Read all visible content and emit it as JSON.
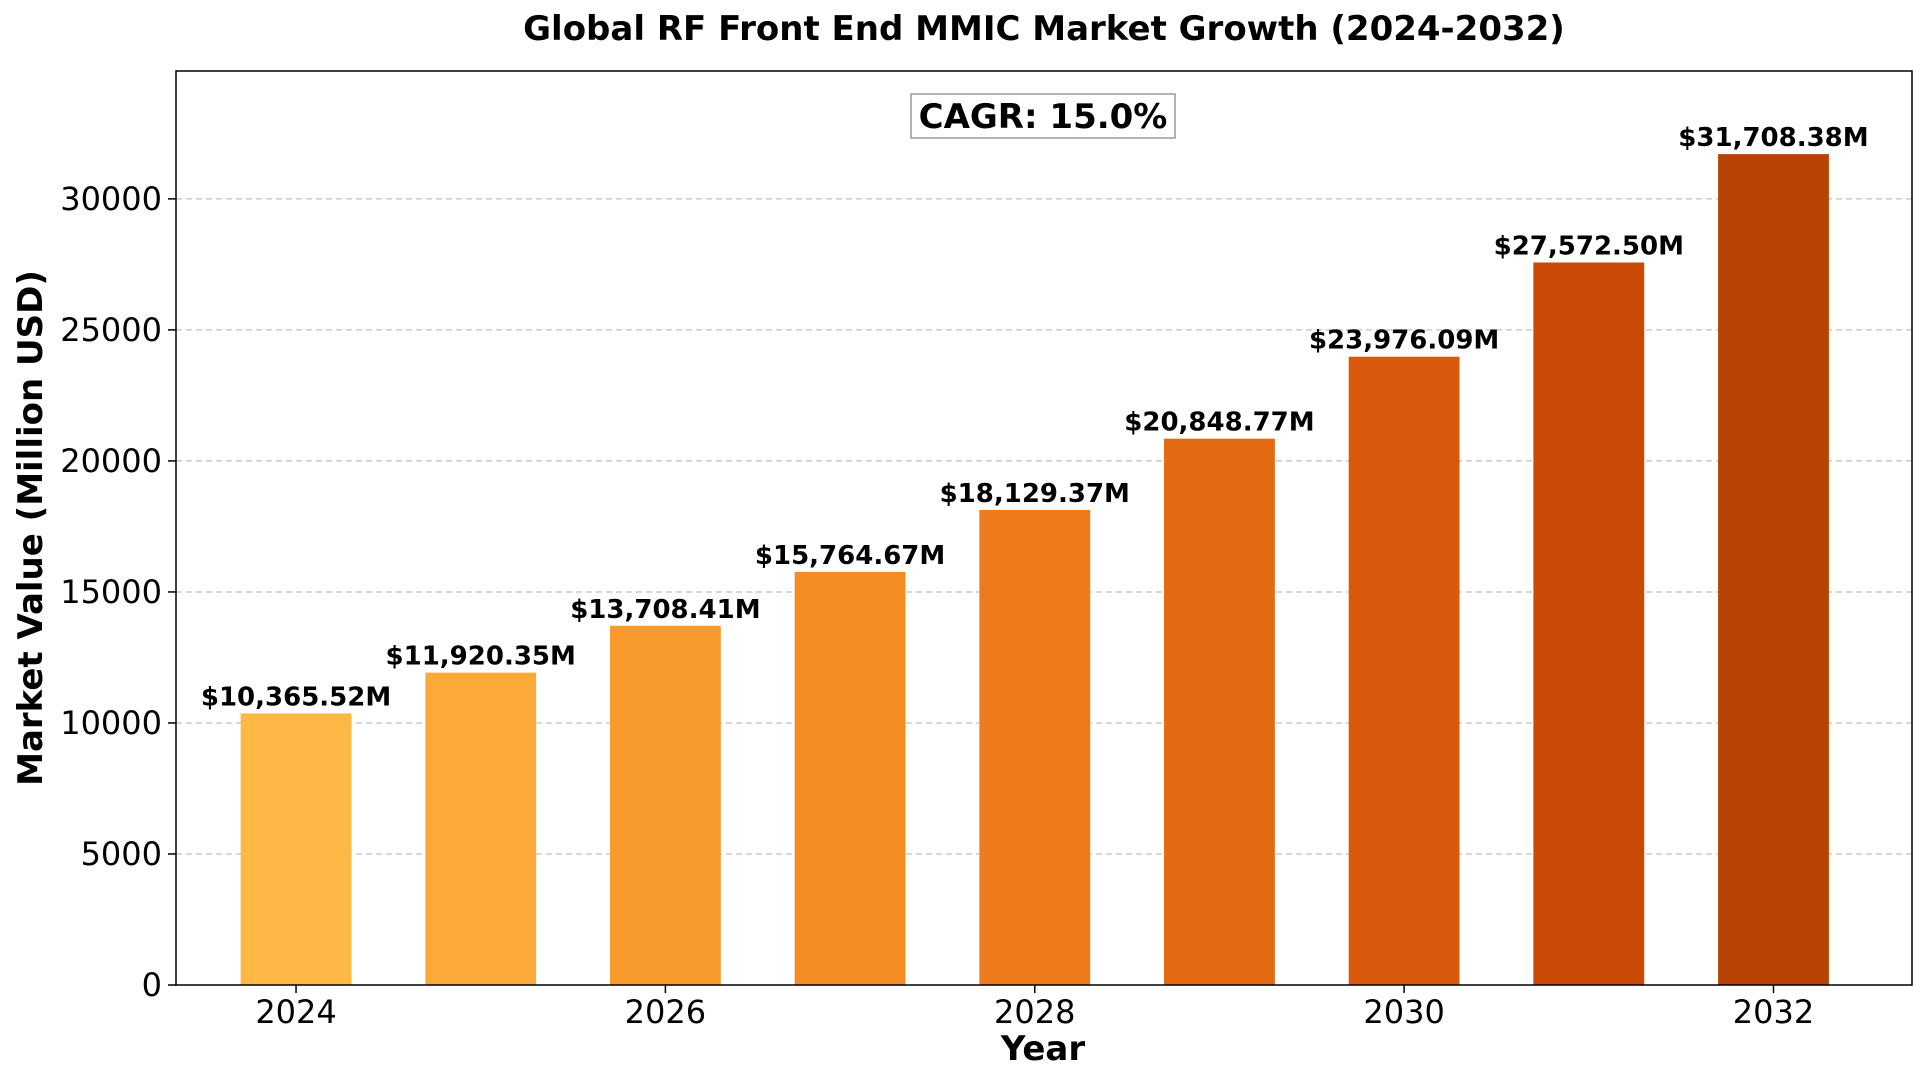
{
  "chart_data": {
    "type": "bar",
    "title": "Global RF Front End MMIC Market Growth (2024-2032)",
    "xlabel": "Year",
    "ylabel": "Market Value (Million USD)",
    "annotation": "CAGR: 15.0%",
    "categories": [
      2024,
      2025,
      2026,
      2027,
      2028,
      2029,
      2030,
      2031,
      2032
    ],
    "values": [
      10365.52,
      11920.35,
      13708.41,
      15764.67,
      18129.37,
      20848.77,
      23976.09,
      27572.5,
      31708.38
    ],
    "data_labels": [
      "$10,365.52M",
      "$11,920.35M",
      "$13,708.41M",
      "$15,764.67M",
      "$18,129.37M",
      "$20,848.77M",
      "$23,976.09M",
      "$27,572.50M",
      "$31,708.38M"
    ],
    "colors": [
      "#fdb845",
      "#fbaa39",
      "#f99a2d",
      "#f48c24",
      "#ee7a1b",
      "#e46913",
      "#d9580b",
      "#cb4906",
      "#b84305"
    ],
    "x_ticks": [
      2024,
      2026,
      2028,
      2030,
      2032
    ],
    "x_tick_labels": [
      "2024",
      "2026",
      "2028",
      "2030",
      "2032"
    ],
    "y_ticks": [
      0,
      5000,
      10000,
      15000,
      20000,
      25000,
      30000
    ],
    "y_tick_labels": [
      "0",
      "5000",
      "10000",
      "15000",
      "20000",
      "25000",
      "30000"
    ],
    "xlim": [
      2023.35,
      2032.75
    ],
    "ylim": [
      0,
      34880
    ],
    "grid": "y-dashed",
    "bar_width_years": 0.6
  }
}
